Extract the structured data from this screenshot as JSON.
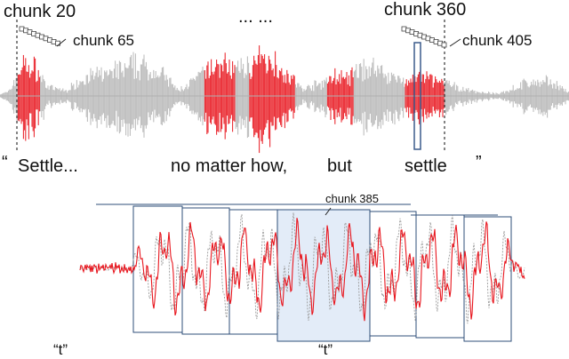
{
  "top_panel": {
    "chunk_labels": {
      "start_first": "chunk 20",
      "end_first": "chunk 65",
      "ellipsis": "... ...",
      "start_last": "chunk 360",
      "end_last": "chunk 405"
    },
    "transcript": {
      "open_quote": "“",
      "w1": "Settle...",
      "w2": "no matter how,",
      "w3": "but",
      "w4": "settle",
      "close_quote": "”"
    },
    "colors": {
      "waveform_gray": "#a9a9a9",
      "waveform_red": "#e8161e",
      "marker": "#3b5b8c"
    }
  },
  "bottom_panel": {
    "highlight_label": "chunk 385",
    "left_phoneme": "“t”",
    "right_phoneme": "“t”",
    "colors": {
      "frame": "#2f4f7a",
      "highlight_fill": "#e3ecf8",
      "red_signal": "#e8161e",
      "gray_signal": "#9a9a9a"
    }
  }
}
